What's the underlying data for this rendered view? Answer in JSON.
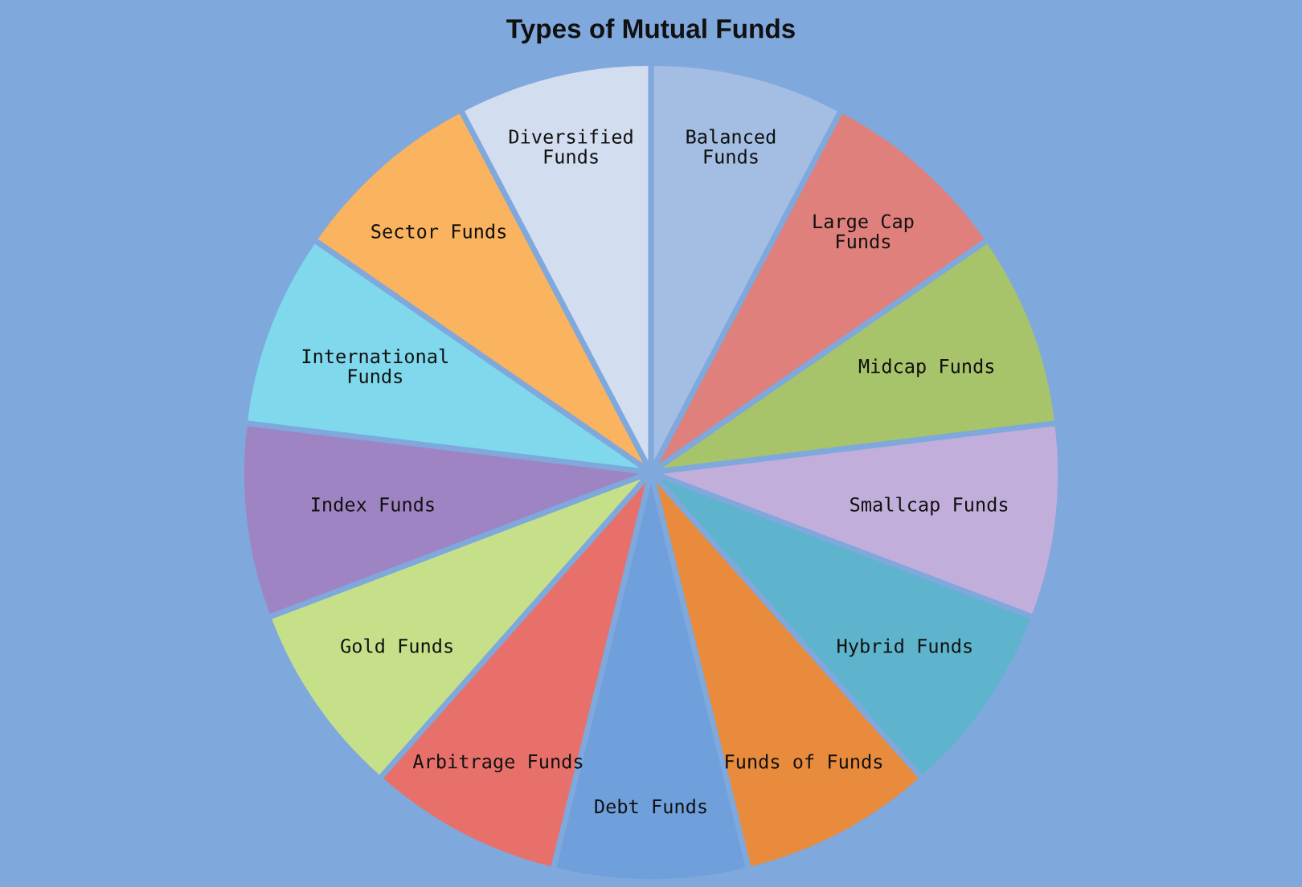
{
  "chart_data": {
    "type": "pie",
    "title": "Types of Mutual Funds",
    "categories": [
      "Balanced\nFunds",
      "Large Cap\nFunds",
      "Midcap Funds",
      "Smallcap Funds",
      "Hybrid Funds",
      "Funds of Funds",
      "Debt Funds",
      "Arbitrage Funds",
      "Gold Funds",
      "Index Funds",
      "International\nFunds",
      "Sector Funds",
      "Diversified\nFunds"
    ],
    "values": [
      7.69,
      7.69,
      7.69,
      7.69,
      7.69,
      7.69,
      7.69,
      7.69,
      7.69,
      7.69,
      7.69,
      7.69,
      7.69
    ],
    "colors": [
      "#a3bde3",
      "#e0807c",
      "#a7c46a",
      "#c2aedb",
      "#5db4cc",
      "#e98b3c",
      "#6fa0dc",
      "#e8706a",
      "#c6e08a",
      "#9f84c4",
      "#7fd8ec",
      "#fab35e",
      "#d2ddf0"
    ]
  }
}
